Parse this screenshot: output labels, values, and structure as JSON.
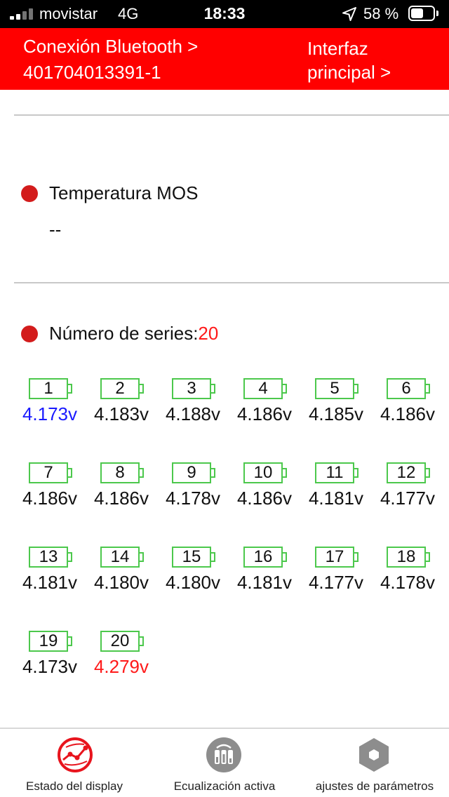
{
  "status_bar": {
    "carrier": "movistar",
    "network": "4G",
    "time": "18:33",
    "battery_percent_text": "58 %",
    "battery_level": 0.58
  },
  "header": {
    "bluetooth_label": "Conexión Bluetooth >",
    "device_id": "401704013391-1",
    "main_interface_line1": "Interfaz",
    "main_interface_line2": "principal >"
  },
  "mos_temp": {
    "label": "Temperatura MOS",
    "value": "--"
  },
  "series": {
    "label": "Número de series:",
    "count": "20"
  },
  "colors": {
    "header_red": "#ff0000",
    "dot_red": "#d31c1c",
    "cell_green": "#4cc84c",
    "lowest_blue": "#1a1aff",
    "highest_red": "#ff1a1a"
  },
  "cells": [
    {
      "n": "1",
      "v": "4.173v",
      "state": "low"
    },
    {
      "n": "2",
      "v": "4.183v",
      "state": ""
    },
    {
      "n": "3",
      "v": "4.188v",
      "state": ""
    },
    {
      "n": "4",
      "v": "4.186v",
      "state": ""
    },
    {
      "n": "5",
      "v": "4.185v",
      "state": ""
    },
    {
      "n": "6",
      "v": "4.186v",
      "state": ""
    },
    {
      "n": "7",
      "v": "4.186v",
      "state": ""
    },
    {
      "n": "8",
      "v": "4.186v",
      "state": ""
    },
    {
      "n": "9",
      "v": "4.178v",
      "state": ""
    },
    {
      "n": "10",
      "v": "4.186v",
      "state": ""
    },
    {
      "n": "11",
      "v": "4.181v",
      "state": ""
    },
    {
      "n": "12",
      "v": "4.177v",
      "state": ""
    },
    {
      "n": "13",
      "v": "4.181v",
      "state": ""
    },
    {
      "n": "14",
      "v": "4.180v",
      "state": ""
    },
    {
      "n": "15",
      "v": "4.180v",
      "state": ""
    },
    {
      "n": "16",
      "v": "4.181v",
      "state": ""
    },
    {
      "n": "17",
      "v": "4.177v",
      "state": ""
    },
    {
      "n": "18",
      "v": "4.178v",
      "state": ""
    },
    {
      "n": "19",
      "v": "4.173v",
      "state": ""
    },
    {
      "n": "20",
      "v": "4.279v",
      "state": "high"
    }
  ],
  "tabs": [
    {
      "label": "Estado del display",
      "icon": "display-status-icon",
      "active": true
    },
    {
      "label": "Ecualización activa",
      "icon": "active-balance-icon",
      "active": false
    },
    {
      "label": "ajustes de parámetros",
      "icon": "parameter-settings-icon",
      "active": false
    }
  ]
}
